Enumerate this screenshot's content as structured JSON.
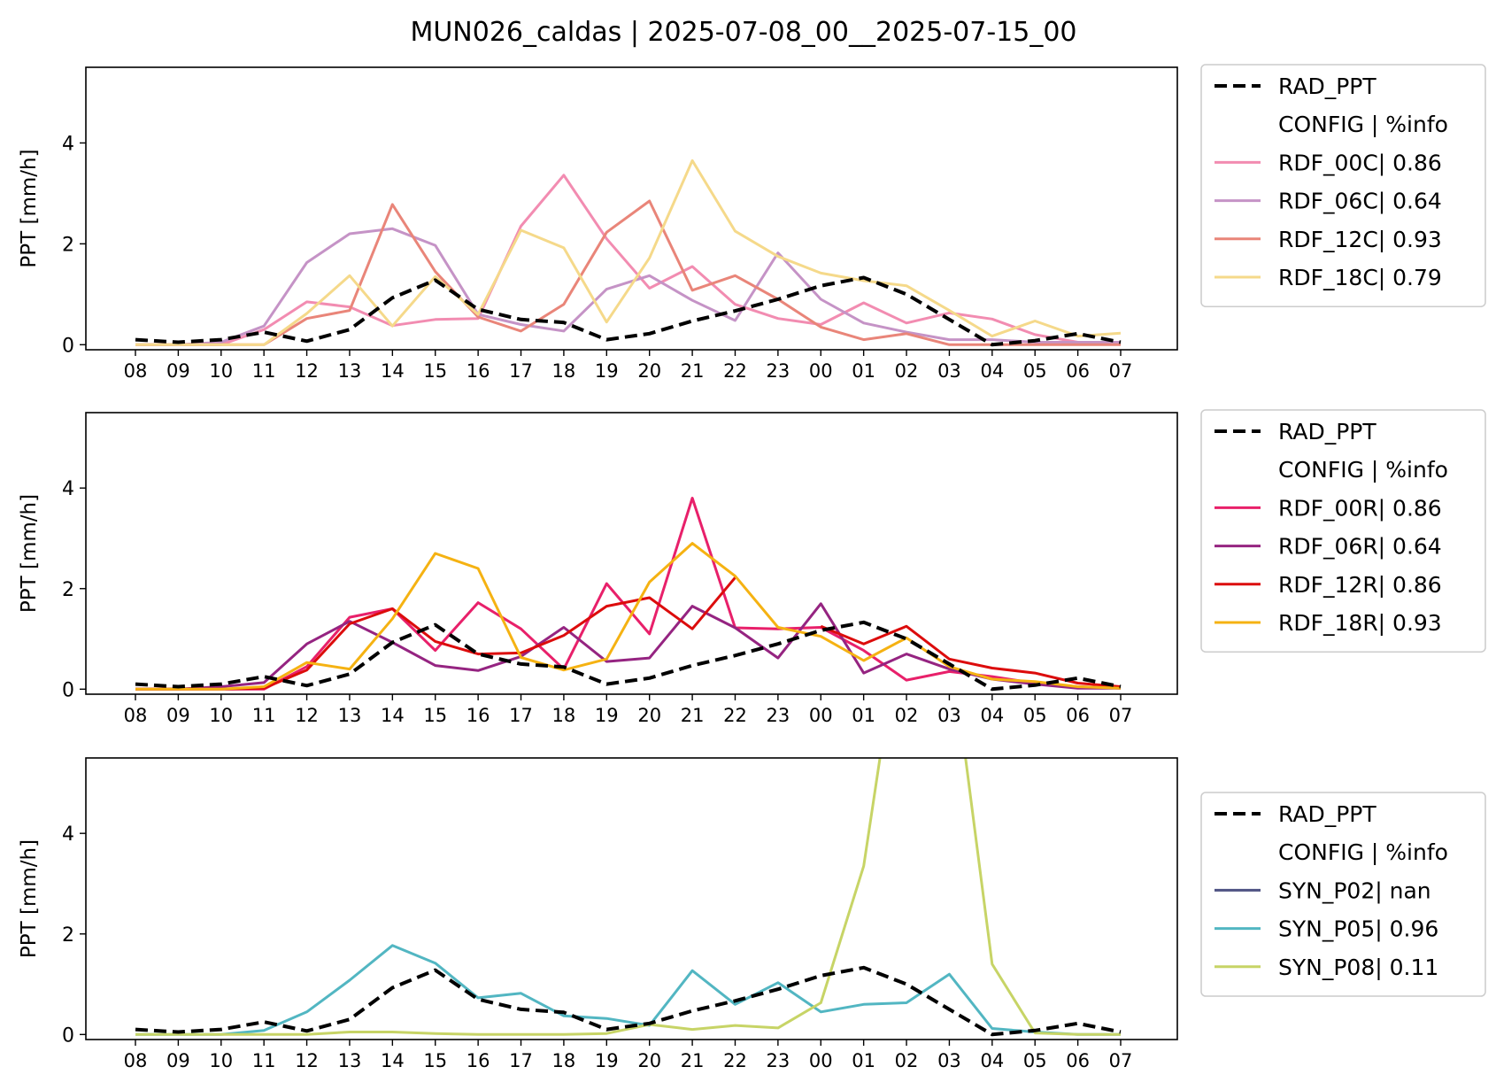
{
  "figure": {
    "title": "MUN026_caldas | 2025-07-08_00__2025-07-15_00"
  },
  "chart_data": [
    {
      "type": "line",
      "title": "",
      "xlabel": "",
      "ylabel": "PPT [mm/h]",
      "ylim": [
        -0.1,
        5.5
      ],
      "yticks": [
        0,
        2,
        4
      ],
      "grid": false,
      "legend_position": "outside-right",
      "legend_header": "CONFIG  | %info",
      "categories": [
        "08",
        "09",
        "10",
        "11",
        "12",
        "13",
        "14",
        "15",
        "16",
        "17",
        "18",
        "19",
        "20",
        "21",
        "22",
        "23",
        "00",
        "01",
        "02",
        "03",
        "04",
        "05",
        "06",
        "07"
      ],
      "series": [
        {
          "name": "RAD_PPT",
          "color": "#000000",
          "dashed": true,
          "values": [
            0.1,
            0.05,
            0.1,
            0.25,
            0.07,
            0.3,
            0.93,
            1.28,
            0.7,
            0.5,
            0.44,
            0.1,
            0.22,
            0.47,
            0.67,
            0.9,
            1.17,
            1.33,
            1.0,
            0.5,
            0.0,
            0.08,
            0.22,
            0.05
          ]
        },
        {
          "name": "RDF_00C| 0.86",
          "color": "#f28cb1",
          "dashed": false,
          "values": [
            0.0,
            0.0,
            0.0,
            0.3,
            0.85,
            0.75,
            0.38,
            0.5,
            0.52,
            2.35,
            3.36,
            2.1,
            1.12,
            1.55,
            0.8,
            0.52,
            0.4,
            0.83,
            0.43,
            0.63,
            0.51,
            0.2,
            0.05,
            0.05
          ]
        },
        {
          "name": "RDF_06C| 0.64",
          "color": "#c593c6",
          "dashed": false,
          "values": [
            0.0,
            0.0,
            0.05,
            0.37,
            1.63,
            2.2,
            2.3,
            1.97,
            0.6,
            0.4,
            0.27,
            1.1,
            1.37,
            0.88,
            0.48,
            1.82,
            0.9,
            0.43,
            0.25,
            0.1,
            0.1,
            0.05,
            0.05,
            0.05
          ]
        },
        {
          "name": "RDF_12C| 0.93",
          "color": "#e98579",
          "dashed": false,
          "values": [
            0.0,
            0.0,
            0.0,
            0.0,
            0.52,
            0.68,
            2.78,
            1.45,
            0.55,
            0.27,
            0.8,
            2.23,
            2.85,
            1.08,
            1.37,
            0.9,
            0.35,
            0.1,
            0.22,
            0.0,
            0.0,
            0.0,
            0.0,
            0.0
          ]
        },
        {
          "name": "RDF_18C| 0.79",
          "color": "#f5d98a",
          "dashed": false,
          "values": [
            0.0,
            0.0,
            0.0,
            0.0,
            0.62,
            1.37,
            0.37,
            1.35,
            0.6,
            2.27,
            1.92,
            0.45,
            1.72,
            3.65,
            2.25,
            1.75,
            1.42,
            1.27,
            1.17,
            0.68,
            0.17,
            0.47,
            0.17,
            0.23
          ]
        }
      ]
    },
    {
      "type": "line",
      "title": "",
      "xlabel": "",
      "ylabel": "PPT [mm/h]",
      "ylim": [
        -0.1,
        5.5
      ],
      "yticks": [
        0,
        2,
        4
      ],
      "grid": false,
      "legend_position": "outside-right",
      "legend_header": "CONFIG  | %info",
      "categories": [
        "08",
        "09",
        "10",
        "11",
        "12",
        "13",
        "14",
        "15",
        "16",
        "17",
        "18",
        "19",
        "20",
        "21",
        "22",
        "23",
        "00",
        "01",
        "02",
        "03",
        "04",
        "05",
        "06",
        "07"
      ],
      "series": [
        {
          "name": "RAD_PPT",
          "color": "#000000",
          "dashed": true,
          "values": [
            0.1,
            0.05,
            0.1,
            0.25,
            0.07,
            0.3,
            0.93,
            1.28,
            0.7,
            0.5,
            0.44,
            0.1,
            0.22,
            0.47,
            0.67,
            0.9,
            1.17,
            1.33,
            1.0,
            0.5,
            0.0,
            0.08,
            0.22,
            0.05
          ]
        },
        {
          "name": "RDF_00R| 0.86",
          "color": "#e8206a",
          "dashed": false,
          "values": [
            0.0,
            0.0,
            0.0,
            0.0,
            0.45,
            1.43,
            1.6,
            0.77,
            1.72,
            1.2,
            0.4,
            2.1,
            1.1,
            3.8,
            1.22,
            1.2,
            1.23,
            0.77,
            0.18,
            0.35,
            0.25,
            0.12,
            0.05,
            0.02
          ]
        },
        {
          "name": "RDF_06R| 0.64",
          "color": "#952481",
          "dashed": false,
          "values": [
            0.0,
            0.0,
            0.05,
            0.13,
            0.9,
            1.35,
            0.93,
            0.47,
            0.37,
            0.65,
            1.23,
            0.55,
            0.62,
            1.65,
            1.22,
            0.62,
            1.7,
            0.32,
            0.7,
            0.4,
            0.2,
            0.1,
            0.02,
            0.02
          ]
        },
        {
          "name": "RDF_12R| 0.86",
          "color": "#dc0c0c",
          "dashed": false,
          "values": [
            0.0,
            0.0,
            0.0,
            0.02,
            0.38,
            1.3,
            1.6,
            0.95,
            0.7,
            0.72,
            1.07,
            1.65,
            1.82,
            1.2,
            2.22,
            null,
            1.25,
            0.9,
            1.25,
            0.6,
            0.42,
            0.32,
            0.12,
            0.05
          ]
        },
        {
          "name": "RDF_18R| 0.93",
          "color": "#f5b212",
          "dashed": false,
          "values": [
            0.0,
            0.0,
            0.0,
            0.05,
            0.53,
            0.4,
            1.4,
            2.7,
            2.4,
            0.63,
            0.38,
            0.6,
            2.13,
            2.9,
            2.25,
            1.23,
            1.05,
            0.57,
            1.02,
            0.45,
            0.2,
            0.15,
            0.05,
            0.02
          ]
        }
      ]
    },
    {
      "type": "line",
      "title": "",
      "xlabel": "",
      "ylabel": "PPT [mm/h]",
      "ylim": [
        -0.1,
        5.5
      ],
      "yticks": [
        0,
        2,
        4
      ],
      "grid": false,
      "legend_position": "outside-right",
      "legend_header": "CONFIG  | %info",
      "categories": [
        "08",
        "09",
        "10",
        "11",
        "12",
        "13",
        "14",
        "15",
        "16",
        "17",
        "18",
        "19",
        "20",
        "21",
        "22",
        "23",
        "00",
        "01",
        "02",
        "03",
        "04",
        "05",
        "06",
        "07"
      ],
      "series": [
        {
          "name": "RAD_PPT",
          "color": "#000000",
          "dashed": true,
          "values": [
            0.1,
            0.05,
            0.1,
            0.25,
            0.07,
            0.3,
            0.93,
            1.28,
            0.7,
            0.5,
            0.44,
            0.1,
            0.22,
            0.47,
            0.67,
            0.9,
            1.17,
            1.33,
            1.0,
            0.5,
            0.0,
            0.08,
            0.22,
            0.05
          ]
        },
        {
          "name": "SYN_P02| nan",
          "color": "#4e5283",
          "dashed": false,
          "values": [
            null,
            null,
            null,
            null,
            null,
            null,
            null,
            null,
            null,
            null,
            null,
            null,
            null,
            null,
            null,
            null,
            null,
            null,
            null,
            null,
            null,
            null,
            null,
            null
          ]
        },
        {
          "name": "SYN_P05| 0.96",
          "color": "#52b6c2",
          "dashed": false,
          "values": [
            0.0,
            0.0,
            0.0,
            0.08,
            0.45,
            1.08,
            1.77,
            1.42,
            0.73,
            0.82,
            0.37,
            0.32,
            0.18,
            1.27,
            0.6,
            1.03,
            0.45,
            0.6,
            0.63,
            1.2,
            0.12,
            0.05,
            0.0,
            0.0
          ]
        },
        {
          "name": "SYN_P08| 0.11",
          "color": "#c7d466",
          "dashed": false,
          "values": [
            0.0,
            0.0,
            0.0,
            0.0,
            0.0,
            0.05,
            0.05,
            0.02,
            0.0,
            0.0,
            0.0,
            0.02,
            0.2,
            0.1,
            0.18,
            0.13,
            0.63,
            3.35,
            9.0,
            8.0,
            1.4,
            0.03,
            0.0,
            0.0
          ]
        }
      ]
    }
  ]
}
